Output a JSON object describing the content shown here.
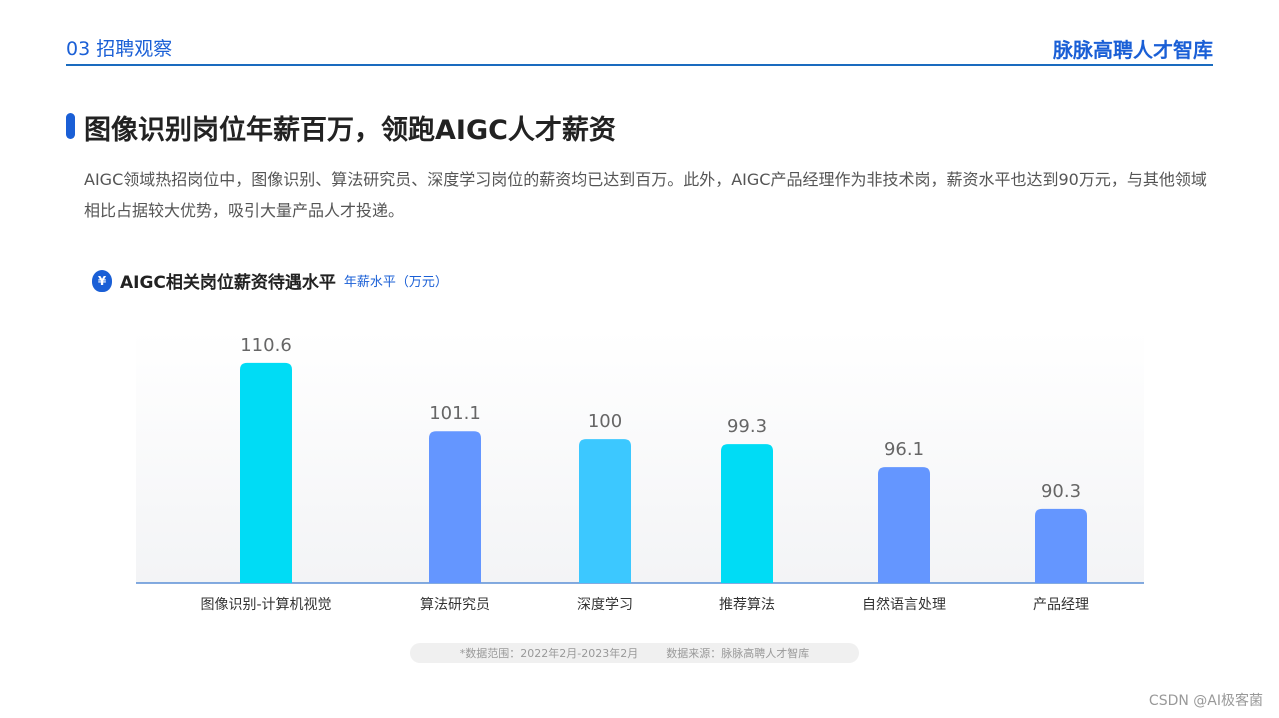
{
  "header": {
    "section": "03 招聘观察",
    "brand": "脉脉高聘人才智库"
  },
  "title": "图像识别岗位年薪百万，领跑AIGC人才薪资",
  "description": "AIGC领域热招岗位中，图像识别、算法研究员、深度学习岗位的薪资均已达到百万。此外，AIGC产品经理作为非技术岗，薪资水平也达到90万元，与其他领域相比占据较大优势，吸引大量产品人才投递。",
  "chart_data": {
    "type": "bar",
    "title": "AIGC相关岗位薪资待遇水平",
    "ylabel": "年薪水平（万元）",
    "icon": "money-bag-icon",
    "icon_glyph": "¥",
    "categories": [
      "图像识别-计算机视觉",
      "算法研究员",
      "深度学习",
      "推荐算法",
      "自然语言处理",
      "产品经理"
    ],
    "values": [
      110.6,
      101.1,
      100,
      99.3,
      96.1,
      90.3
    ],
    "labels": [
      "110.6",
      "101.1",
      "100",
      "99.3",
      "96.1",
      "90.3"
    ],
    "colors": [
      "#00dcf5",
      "#6496ff",
      "#3cc8ff",
      "#00dcf5",
      "#6496ff",
      "#6496ff"
    ],
    "ylim": [
      80,
      111
    ],
    "grid": false
  },
  "footnote": {
    "range": "*数据范围：2022年2月-2023年2月",
    "source": "数据来源：脉脉高聘人才智库"
  },
  "watermark": "CSDN @AI极客菌"
}
